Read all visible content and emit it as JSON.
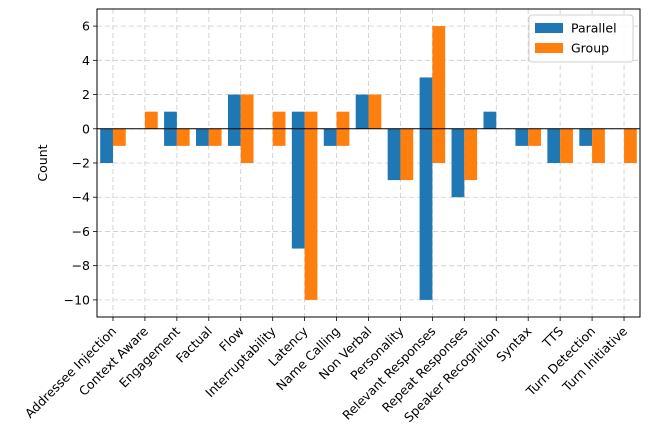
{
  "chart_data": {
    "type": "bar",
    "title": "",
    "xlabel": "",
    "ylabel": "Count",
    "ylim": [
      -11,
      7
    ],
    "yticks": [
      6,
      4,
      2,
      0,
      -2,
      -4,
      -6,
      -8,
      -10
    ],
    "grid": true,
    "legend_position": "top-right",
    "categories": [
      "Addressee Injection",
      "Context Aware",
      "Engagement",
      "Factual",
      "Flow",
      "Interruptability",
      "Latency",
      "Name Calling",
      "Non Verbal",
      "Personality",
      "Relevant Responses",
      "Repeat Responses",
      "Speaker Recognition",
      "Syntax",
      "TTS",
      "Turn Detection",
      "Turn Initiative"
    ],
    "series": [
      {
        "name": "Parallel",
        "color": "#1f77b4",
        "pos": [
          0,
          0,
          1,
          0,
          2,
          0,
          1,
          0,
          2,
          0,
          3,
          0,
          1,
          0,
          0,
          0,
          0
        ],
        "neg": [
          -2,
          0,
          -1,
          -1,
          -1,
          0,
          -7,
          -1,
          0,
          -3,
          -10,
          -4,
          0,
          -1,
          -2,
          -1,
          0
        ]
      },
      {
        "name": "Group",
        "color": "#ff7f0e",
        "pos": [
          0,
          1,
          0,
          0,
          2,
          1,
          1,
          1,
          2,
          0,
          6,
          0,
          0,
          0,
          0,
          0,
          0
        ],
        "neg": [
          -1,
          0,
          -1,
          -1,
          -2,
          -1,
          -10,
          -1,
          0,
          -3,
          -2,
          -3,
          0,
          -1,
          -2,
          -2,
          -2
        ]
      }
    ]
  }
}
